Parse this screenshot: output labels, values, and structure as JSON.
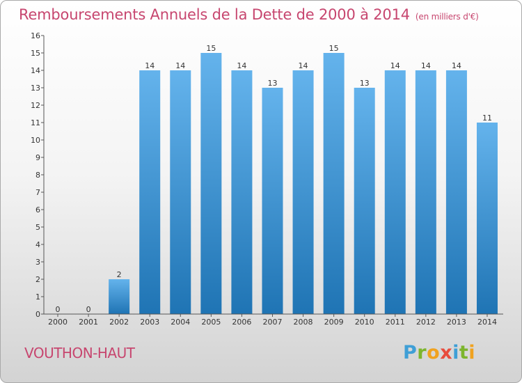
{
  "header": {
    "title": "Remboursements Annuels de la Dette de 2000 à 2014",
    "unit": "(en milliers d'€)"
  },
  "footer": {
    "commune": "VOUTHON-HAUT",
    "brand": [
      "P",
      "r",
      "o",
      "x",
      "i",
      "t",
      "i"
    ],
    "brand_colors": [
      "#3f9fd6",
      "#7db52d",
      "#f0a21f",
      "#e84c3d",
      "#3f9fd6",
      "#7db52d",
      "#f0a21f"
    ]
  },
  "colors": {
    "bar_light": "#64b3ec",
    "bar_dark": "#1f74b4",
    "title": "#c7466f"
  },
  "chart_data": {
    "type": "bar",
    "title": "Remboursements Annuels de la Dette de 2000 à 2014",
    "categories": [
      "2000",
      "2001",
      "2002",
      "2003",
      "2004",
      "2005",
      "2006",
      "2007",
      "2008",
      "2009",
      "2010",
      "2011",
      "2012",
      "2013",
      "2014"
    ],
    "values": [
      0,
      0,
      2,
      14,
      14,
      15,
      14,
      13,
      14,
      15,
      13,
      14,
      14,
      14,
      11
    ],
    "data_labels": [
      "0",
      "0",
      "2",
      "14",
      "14",
      "15",
      "14",
      "13",
      "14",
      "15",
      "13",
      "14",
      "14",
      "14",
      "11"
    ],
    "ylim": [
      0,
      16
    ],
    "yticks": [
      0,
      1,
      2,
      3,
      4,
      5,
      6,
      7,
      8,
      9,
      10,
      11,
      12,
      13,
      14,
      15,
      16
    ],
    "grid": false
  }
}
